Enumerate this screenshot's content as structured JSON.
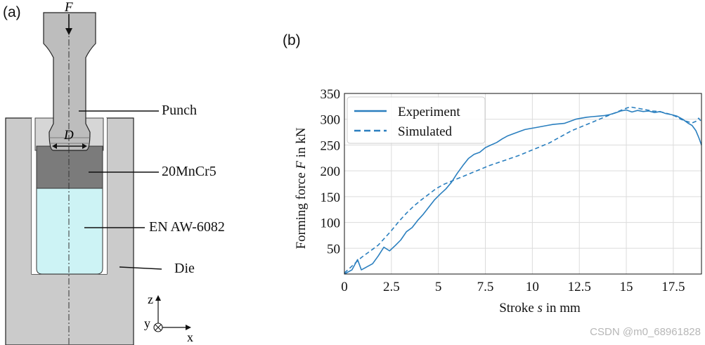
{
  "panel_a": {
    "label": "(a)",
    "force_symbol": "F",
    "diameter_symbol": "D",
    "callouts": {
      "punch": "Punch",
      "steel": "20MnCr5",
      "aluminium": "EN AW-6082",
      "die": "Die"
    },
    "axes": {
      "z": "z",
      "y": "y",
      "x": "x"
    },
    "colors": {
      "die": "#cbcbcb",
      "punch": "#bdbdbd",
      "steel": "#7b7b7b",
      "aluminium": "#cdf3f5",
      "outline": "#222222"
    }
  },
  "panel_b": {
    "label": "(b)"
  },
  "chart_data": {
    "type": "line",
    "xlabel_prefix": "Stroke ",
    "xlabel_symbol": "s",
    "xlabel_suffix": " in mm",
    "ylabel_prefix": "Forming force ",
    "ylabel_symbol": "F",
    "ylabel_suffix": " in kN",
    "xlim": [
      0,
      19
    ],
    "ylim": [
      0,
      350
    ],
    "x_ticks": [
      0,
      2.5,
      5,
      7.5,
      10,
      12.5,
      15,
      17.5
    ],
    "x_tick_labels": [
      "0",
      "2.5",
      "5",
      "7.5",
      "10",
      "12.5",
      "15",
      "17.5"
    ],
    "y_ticks": [
      50,
      100,
      150,
      200,
      250,
      300,
      350
    ],
    "y_tick_labels": [
      "50",
      "100",
      "150",
      "200",
      "250",
      "300",
      "350"
    ],
    "grid": true,
    "legend_position": "top-left",
    "color": "#2a7fbf",
    "series": [
      {
        "name": "Experiment",
        "style": "solid",
        "x": [
          0,
          0.4,
          0.7,
          0.9,
          1.2,
          1.5,
          1.8,
          2.1,
          2.4,
          2.7,
          3.0,
          3.3,
          3.6,
          3.9,
          4.2,
          4.5,
          4.8,
          5.1,
          5.4,
          5.7,
          6.0,
          6.3,
          6.6,
          6.9,
          7.2,
          7.5,
          7.8,
          8.1,
          8.4,
          8.7,
          9.0,
          9.3,
          9.6,
          9.9,
          10.2,
          10.5,
          10.8,
          11.1,
          11.4,
          11.7,
          12.0,
          12.3,
          12.6,
          12.9,
          13.2,
          13.5,
          13.8,
          14.1,
          14.4,
          14.7,
          15.0,
          15.3,
          15.6,
          15.9,
          16.2,
          16.5,
          16.8,
          17.1,
          17.4,
          17.7,
          18.0,
          18.3,
          18.5,
          18.7,
          18.85,
          19.0
        ],
        "y": [
          0,
          8,
          28,
          8,
          14,
          20,
          35,
          52,
          45,
          55,
          66,
          82,
          90,
          104,
          116,
          130,
          144,
          155,
          165,
          178,
          195,
          210,
          224,
          232,
          236,
          245,
          250,
          255,
          262,
          268,
          272,
          276,
          280,
          282,
          284,
          286,
          288,
          290,
          291,
          292,
          296,
          300,
          302,
          304,
          305,
          306,
          307,
          309,
          312,
          316,
          318,
          314,
          317,
          315,
          316,
          313,
          315,
          311,
          309,
          306,
          300,
          292,
          288,
          278,
          265,
          250
        ]
      },
      {
        "name": "Simulated",
        "style": "dashed",
        "x": [
          0,
          0.3,
          0.6,
          0.9,
          1.2,
          1.5,
          1.8,
          2.1,
          2.5,
          2.9,
          3.3,
          3.7,
          4.1,
          4.5,
          4.9,
          5.3,
          5.7,
          6.1,
          6.5,
          6.9,
          7.3,
          7.7,
          8.1,
          8.5,
          8.9,
          9.3,
          9.7,
          10.1,
          10.5,
          10.9,
          11.3,
          11.7,
          12.1,
          12.5,
          12.9,
          13.3,
          13.7,
          14.1,
          14.5,
          14.9,
          15.2,
          15.5,
          15.8,
          16.1,
          16.4,
          16.7,
          17.0,
          17.3,
          17.6,
          17.9,
          18.2,
          18.5,
          18.7,
          18.85,
          19.0
        ],
        "y": [
          2,
          12,
          22,
          32,
          40,
          48,
          56,
          68,
          84,
          102,
          118,
          132,
          144,
          155,
          166,
          174,
          180,
          186,
          192,
          198,
          204,
          210,
          215,
          220,
          225,
          230,
          236,
          242,
          248,
          254,
          262,
          270,
          278,
          284,
          290,
          296,
          302,
          308,
          314,
          320,
          324,
          322,
          320,
          318,
          316,
          315,
          313,
          310,
          306,
          300,
          296,
          293,
          296,
          302,
          295
        ]
      }
    ]
  },
  "watermark": "CSDN @m0_68961828"
}
